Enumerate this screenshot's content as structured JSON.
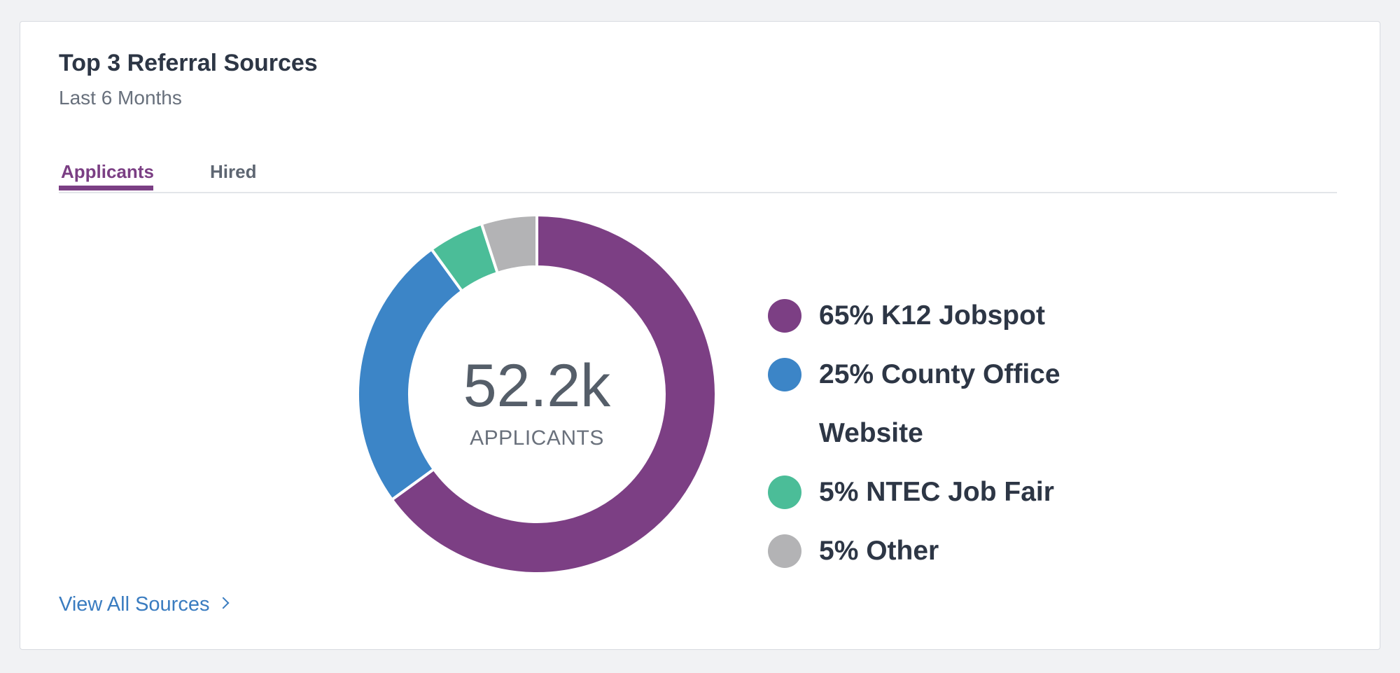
{
  "card": {
    "title": "Top 3 Referral Sources",
    "subtitle": "Last 6 Months"
  },
  "tabs": [
    {
      "label": "Applicants",
      "active": true
    },
    {
      "label": "Hired",
      "active": false
    }
  ],
  "center": {
    "value": "52.2k",
    "label": "APPLICANTS"
  },
  "legend": [
    {
      "label": "65% K12 Jobspot",
      "color": "#7c3f84"
    },
    {
      "label": "25% County Office Website",
      "color": "#3c85c7"
    },
    {
      "label": "5% NTEC Job Fair",
      "color": "#4bbd98"
    },
    {
      "label": "5% Other",
      "color": "#b3b3b5"
    }
  ],
  "chart_data": {
    "type": "pie",
    "categories": [
      "K12 Jobspot",
      "County Office Website",
      "NTEC Job Fair",
      "Other"
    ],
    "values": [
      65,
      25,
      5,
      5
    ],
    "colors": [
      "#7c3f84",
      "#3c85c7",
      "#4bbd98",
      "#b3b3b5"
    ],
    "start": "top",
    "direction": "clockwise"
  },
  "footer": {
    "link_label": "View All Sources"
  }
}
